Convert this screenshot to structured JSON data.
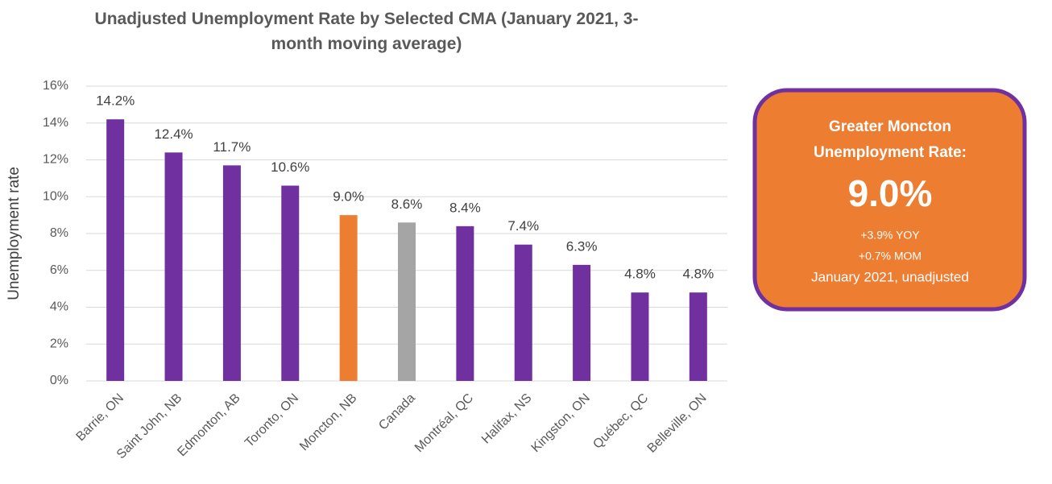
{
  "chart_data": {
    "type": "bar",
    "title": "Unadjusted Unemployment Rate by Selected CMA (January 2021, 3-month moving average)",
    "y_label": "Unemployment rate",
    "categories": [
      "Barrie, ON",
      "Saint John, NB",
      "Edmonton, AB",
      "Toronto, ON",
      "Moncton, NB",
      "Canada",
      "Montréal, QC",
      "Halifax, NS",
      "Kingston, ON",
      "Québec, QC",
      "Belleville, ON"
    ],
    "values": [
      14.2,
      12.4,
      11.7,
      10.6,
      9.0,
      8.6,
      8.4,
      7.4,
      6.3,
      4.8,
      4.8
    ],
    "value_labels": [
      "14.2%",
      "12.4%",
      "11.7%",
      "10.6%",
      "9.0%",
      "8.6%",
      "8.4%",
      "7.4%",
      "6.3%",
      "4.8%",
      "4.8%"
    ],
    "colors": [
      "#7030a0",
      "#7030a0",
      "#7030a0",
      "#7030a0",
      "#ed7d31",
      "#a5a5a5",
      "#7030a0",
      "#7030a0",
      "#7030a0",
      "#7030a0",
      "#7030a0"
    ],
    "ylim": [
      0,
      16
    ],
    "yticks": [
      {
        "value": 0,
        "label": "0%"
      },
      {
        "value": 2,
        "label": "2%"
      },
      {
        "value": 4,
        "label": "4%"
      },
      {
        "value": 6,
        "label": "6%"
      },
      {
        "value": 8,
        "label": "8%"
      },
      {
        "value": 10,
        "label": "10%"
      },
      {
        "value": 12,
        "label": "12%"
      },
      {
        "value": 14,
        "label": "14%"
      },
      {
        "value": 16,
        "label": "16%"
      }
    ],
    "grid": true,
    "callout": [
      "Greater Moncton",
      "Unemployment Rate:",
      "9.0%",
      "+3.9% YOY",
      "+0.7% MOM",
      "January 2021, unadjusted"
    ]
  }
}
